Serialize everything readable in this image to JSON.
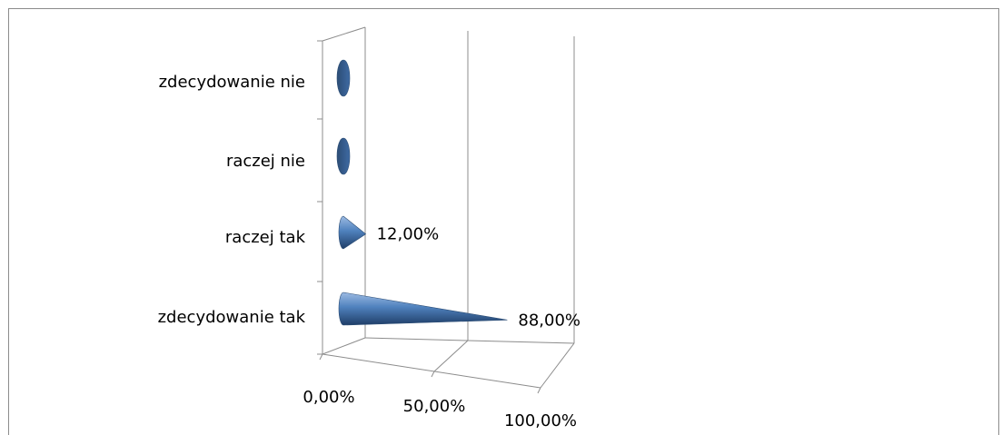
{
  "chart_data": {
    "type": "bar",
    "style": "3d-cone",
    "orientation": "horizontal",
    "title": "",
    "xlabel": "",
    "ylabel": "",
    "categories": [
      "zdecydowanie nie",
      "raczej nie",
      "raczej tak",
      "zdecydowanie tak"
    ],
    "values": [
      0,
      0,
      12,
      88
    ],
    "data_labels": [
      "",
      "",
      "12,00%",
      "88,00%"
    ],
    "x_ticks": [
      "0,00%",
      "50,00%",
      "100,00%"
    ],
    "xlim": [
      0,
      100
    ],
    "grid": true,
    "legend": "none",
    "colors": {
      "cone": "#4f81bd",
      "cone_dark": "#2c4d75",
      "axis": "#8c8c8c"
    }
  }
}
